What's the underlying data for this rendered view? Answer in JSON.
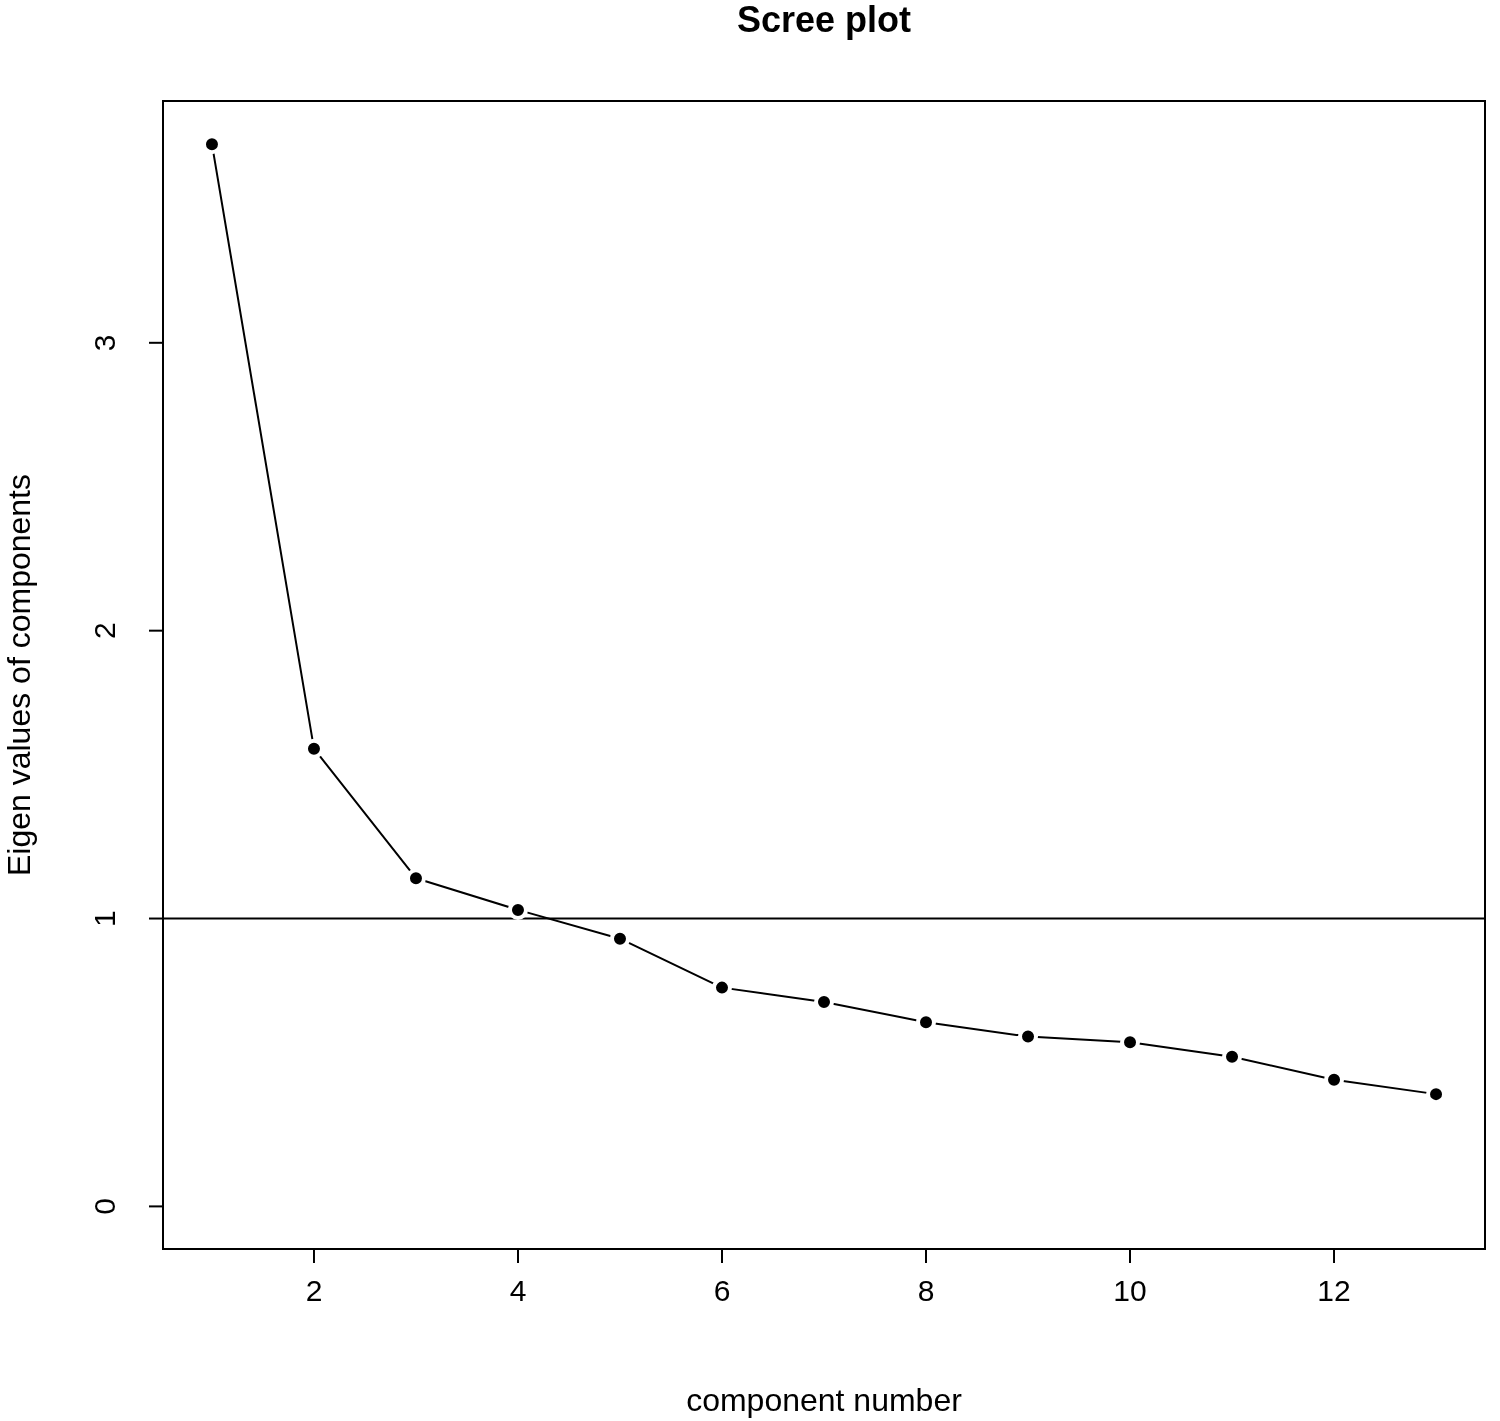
{
  "chart_data": {
    "type": "line",
    "title": "Scree plot",
    "xlabel": "component number",
    "ylabel": "Eigen values of components",
    "x": [
      1,
      2,
      3,
      4,
      5,
      6,
      7,
      8,
      9,
      10,
      11,
      12,
      13
    ],
    "series": [
      {
        "color": "#000000",
        "values": [
          3.69,
          1.59,
          1.14,
          1.03,
          0.93,
          0.76,
          0.71,
          0.64,
          0.59,
          0.57,
          0.52,
          0.44,
          0.39
        ]
      }
    ],
    "xlim": [
      0.52,
      13.48
    ],
    "ylim": [
      -0.148,
      3.84
    ],
    "xticks": [
      2,
      4,
      6,
      8,
      10,
      12
    ],
    "yticks": [
      0,
      1,
      2,
      3
    ],
    "ref_lines": [
      {
        "axis": "y",
        "value": 1,
        "color": "#000000"
      }
    ],
    "marker": "circle",
    "grid": false
  }
}
